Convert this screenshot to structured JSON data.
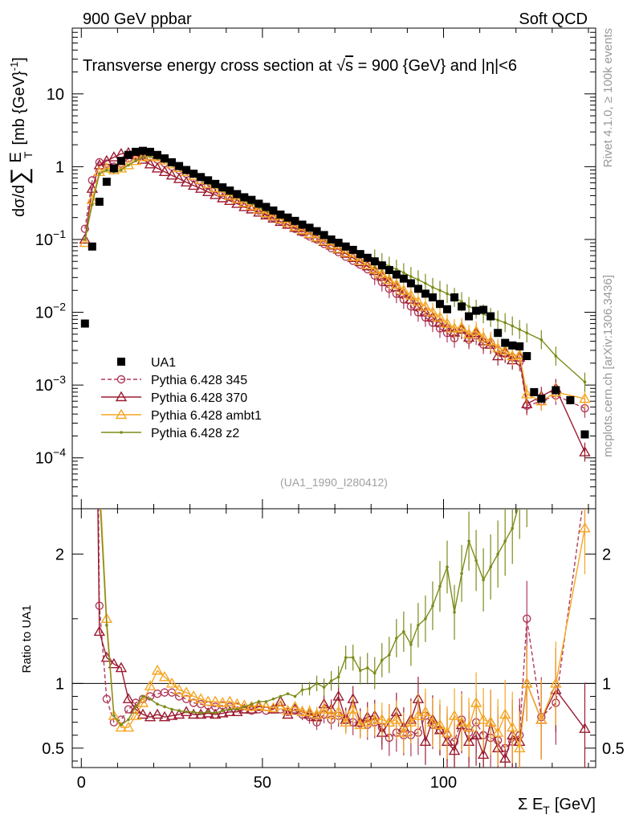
{
  "header": {
    "left": "900 GeV ppbar",
    "right": "Soft QCD",
    "rivet": "Rivet 4.1.0, ≥ 100k events",
    "mcplots": "mcplots.cern.ch [arXiv:1306.3436]",
    "analysis_id": "(UA1_1990_I280412)"
  },
  "chart_data": {
    "type": "line",
    "title": "Transverse energy cross section at √s = 900 {GeV} and |η|<6",
    "title_main": "Transverse energy cross section at ",
    "title_sqrt": "s",
    "title_rest": " = 900 {GeV} and |η|<6",
    "ylabel": "dσ/d∑ E_T [mb {GeV}^-1]",
    "ylabel_a": "dσ/d",
    "ylabel_b": "∑",
    "ylabel_c": "E",
    "ylabel_d": "T",
    "ylabel_e": "[mb {GeV}",
    "ylabel_f": "-1",
    "ylabel_g": "]",
    "xlabel": "Σ E_T [GeV]",
    "xlabel_a": "Σ E",
    "xlabel_b": "T",
    "xlabel_c": "[GeV]",
    "ratio_label": "Ratio to UA1",
    "xlim": [
      -2.5,
      142
    ],
    "ylim": [
      2e-05,
      80
    ],
    "yscale": "log",
    "ratio_ylim": [
      0.35,
      2.35
    ],
    "x_ticks": [
      "0",
      "50",
      "100"
    ],
    "y_ticks": [
      {
        "value": 10,
        "label": "10"
      },
      {
        "value": 1,
        "label": "1"
      },
      {
        "value": 0.1,
        "base": "10",
        "exp": "−1"
      },
      {
        "value": 0.01,
        "base": "10",
        "exp": "−2"
      },
      {
        "value": 0.001,
        "base": "10",
        "exp": "−3"
      },
      {
        "value": 0.0001,
        "base": "10",
        "exp": "−4"
      }
    ],
    "ratio_ticks": [
      "0.5",
      "1",
      "2"
    ],
    "series": [
      {
        "name": "UA1",
        "color": "#000000",
        "marker": "square",
        "x": [
          1,
          3,
          5,
          7,
          9,
          11,
          13,
          15,
          17,
          19,
          21,
          23,
          25,
          27,
          29,
          31,
          33,
          35,
          37,
          39,
          41,
          43,
          45,
          47,
          49,
          51,
          53,
          55,
          57,
          59,
          61,
          63,
          65,
          67,
          69,
          71,
          73,
          75,
          77,
          79,
          81,
          83,
          85,
          87,
          89,
          91,
          93,
          95,
          97,
          99,
          101,
          103,
          105,
          107,
          109,
          111,
          113,
          115,
          117,
          119,
          121,
          123,
          125,
          127,
          131,
          135,
          139
        ],
        "y": [
          0.007,
          0.08,
          0.33,
          0.62,
          0.95,
          1.2,
          1.45,
          1.6,
          1.65,
          1.6,
          1.45,
          1.3,
          1.15,
          1.02,
          0.9,
          0.8,
          0.72,
          0.65,
          0.58,
          0.52,
          0.47,
          0.42,
          0.38,
          0.35,
          0.31,
          0.28,
          0.25,
          0.22,
          0.2,
          0.18,
          0.16,
          0.145,
          0.13,
          0.115,
          0.1,
          0.09,
          0.08,
          0.072,
          0.063,
          0.056,
          0.05,
          0.044,
          0.038,
          0.033,
          0.029,
          0.025,
          0.021,
          0.018,
          0.016,
          0.013,
          0.011,
          0.016,
          0.012,
          0.0088,
          0.0105,
          0.0108,
          0.0088,
          0.0052,
          0.0038,
          0.0035,
          0.0034,
          0.0025,
          0.0008,
          0.00065,
          0.00085,
          0.00062,
          0.00021
        ]
      },
      {
        "name": "Pythia 6.428 345",
        "color": "#b03a5a",
        "marker": "circle",
        "dashed": true,
        "x": [
          1,
          3,
          5,
          7,
          9,
          11,
          13,
          15,
          17,
          19,
          21,
          23,
          25,
          27,
          29,
          31,
          33,
          35,
          37,
          39,
          41,
          43,
          45,
          47,
          49,
          51,
          53,
          55,
          57,
          59,
          61,
          63,
          65,
          67,
          69,
          71,
          73,
          75,
          77,
          79,
          81,
          83,
          85,
          87,
          89,
          91,
          93,
          95,
          97,
          99,
          101,
          103,
          105,
          107,
          109,
          111,
          113,
          115,
          117,
          119,
          121,
          123,
          127,
          131,
          139
        ],
        "y": [
          0.14,
          0.65,
          1.15,
          1.1,
          1.0,
          1.1,
          1.3,
          1.4,
          1.45,
          1.38,
          1.25,
          1.12,
          1.0,
          0.9,
          0.8,
          0.7,
          0.62,
          0.55,
          0.49,
          0.44,
          0.39,
          0.35,
          0.31,
          0.28,
          0.25,
          0.22,
          0.2,
          0.18,
          0.16,
          0.14,
          0.125,
          0.11,
          0.1,
          0.087,
          0.076,
          0.067,
          0.058,
          0.051,
          0.045,
          0.039,
          0.032,
          0.026,
          0.021,
          0.018,
          0.015,
          0.012,
          0.01,
          0.0085,
          0.0072,
          0.006,
          0.0052,
          0.0044,
          0.0058,
          0.0042,
          0.0048,
          0.0036,
          0.0038,
          0.003,
          0.0027,
          0.0024,
          0.0021,
          0.00052,
          0.0006,
          0.00072,
          0.00048
        ],
        "ratio": [
          20,
          8,
          1.6,
          0.88,
          0.7,
          0.72,
          0.8,
          0.85,
          0.88,
          0.9,
          0.92,
          0.93,
          0.93,
          0.9,
          0.88,
          0.85,
          0.84,
          0.83,
          0.82,
          0.83,
          0.82,
          0.82,
          0.8,
          0.79,
          0.8,
          0.79,
          0.8,
          0.8,
          0.78,
          0.79,
          0.76,
          0.74,
          0.7,
          0.76,
          0.72,
          0.75,
          0.72,
          0.7,
          0.69,
          0.68,
          0.7,
          0.66,
          0.58,
          0.62,
          0.6,
          0.6,
          0.62,
          0.75,
          0.68,
          0.64,
          0.6,
          0.55,
          0.72,
          0.62,
          0.7,
          0.6,
          0.58,
          0.56,
          0.5,
          0.55,
          0.6,
          1.5,
          0.74,
          0.85,
          2.5
        ]
      },
      {
        "name": "Pythia 6.428 370",
        "color": "#9b1b30",
        "marker": "triangle",
        "x": [
          1,
          3,
          5,
          7,
          9,
          11,
          13,
          15,
          17,
          19,
          21,
          23,
          25,
          27,
          29,
          31,
          33,
          35,
          37,
          39,
          41,
          43,
          45,
          47,
          49,
          51,
          53,
          55,
          57,
          59,
          61,
          63,
          65,
          67,
          69,
          71,
          73,
          75,
          77,
          79,
          81,
          83,
          85,
          87,
          89,
          91,
          93,
          95,
          97,
          99,
          101,
          103,
          105,
          107,
          109,
          111,
          113,
          115,
          117,
          119,
          121,
          123,
          127,
          131,
          139
        ],
        "y": [
          0.1,
          0.5,
          1.05,
          1.2,
          1.35,
          1.5,
          1.55,
          1.45,
          1.25,
          1.08,
          0.95,
          0.85,
          0.76,
          0.68,
          0.61,
          0.55,
          0.5,
          0.45,
          0.41,
          0.37,
          0.34,
          0.31,
          0.28,
          0.26,
          0.235,
          0.215,
          0.195,
          0.175,
          0.16,
          0.145,
          0.13,
          0.118,
          0.105,
          0.093,
          0.083,
          0.073,
          0.064,
          0.056,
          0.049,
          0.043,
          0.037,
          0.031,
          0.026,
          0.022,
          0.018,
          0.015,
          0.012,
          0.01,
          0.0085,
          0.0072,
          0.0062,
          0.0053,
          0.0058,
          0.0045,
          0.0052,
          0.004,
          0.0036,
          0.0025,
          0.0028,
          0.0022,
          0.0024,
          0.00055,
          0.0007,
          0.0009,
          0.00012
        ],
        "ratio": [
          14,
          6,
          1.4,
          1.2,
          1.15,
          1.12,
          0.88,
          0.8,
          0.76,
          0.74,
          0.76,
          0.74,
          0.75,
          0.76,
          0.78,
          0.76,
          0.76,
          0.77,
          0.76,
          0.77,
          0.78,
          0.78,
          0.8,
          0.8,
          0.82,
          0.82,
          0.8,
          0.86,
          0.76,
          0.8,
          0.78,
          0.76,
          0.74,
          0.84,
          0.8,
          0.9,
          0.72,
          0.88,
          0.7,
          0.74,
          0.75,
          0.62,
          0.7,
          0.78,
          0.66,
          0.72,
          0.88,
          0.55,
          0.72,
          0.64,
          0.55,
          0.48,
          0.68,
          0.55,
          0.6,
          0.45,
          0.7,
          0.5,
          0.42,
          0.6,
          0.55,
          1.0,
          0.72,
          0.95,
          0.65
        ]
      },
      {
        "name": "Pythia 6.428 ambt1",
        "color": "#f5a623",
        "marker": "triangle",
        "x": [
          1,
          3,
          5,
          7,
          9,
          11,
          13,
          15,
          17,
          19,
          21,
          23,
          25,
          27,
          29,
          31,
          33,
          35,
          37,
          39,
          41,
          43,
          45,
          47,
          49,
          51,
          53,
          55,
          57,
          59,
          61,
          63,
          65,
          67,
          69,
          71,
          73,
          75,
          77,
          79,
          81,
          83,
          85,
          87,
          89,
          91,
          93,
          95,
          97,
          99,
          101,
          103,
          105,
          107,
          109,
          111,
          113,
          115,
          117,
          119,
          121,
          123,
          127,
          131,
          139
        ],
        "y": [
          0.09,
          0.35,
          0.85,
          0.95,
          0.9,
          0.95,
          1.05,
          1.2,
          1.35,
          1.4,
          1.35,
          1.22,
          1.08,
          0.96,
          0.85,
          0.75,
          0.66,
          0.58,
          0.51,
          0.45,
          0.4,
          0.36,
          0.32,
          0.29,
          0.26,
          0.23,
          0.21,
          0.19,
          0.17,
          0.15,
          0.135,
          0.12,
          0.107,
          0.095,
          0.085,
          0.075,
          0.066,
          0.058,
          0.051,
          0.045,
          0.039,
          0.034,
          0.028,
          0.024,
          0.02,
          0.017,
          0.014,
          0.012,
          0.01,
          0.0085,
          0.007,
          0.006,
          0.0062,
          0.005,
          0.0055,
          0.0045,
          0.004,
          0.0032,
          0.003,
          0.0025,
          0.0026,
          0.00075,
          0.0006,
          0.0008,
          0.00065
        ],
        "ratio": [
          13,
          4.5,
          2.6,
          1.5,
          0.75,
          0.66,
          0.66,
          0.75,
          0.85,
          0.98,
          1.1,
          1.05,
          1.0,
          0.95,
          0.93,
          0.9,
          0.88,
          0.86,
          0.86,
          0.85,
          0.86,
          0.84,
          0.83,
          0.82,
          0.83,
          0.82,
          0.81,
          0.83,
          0.79,
          0.82,
          0.78,
          0.78,
          0.76,
          0.8,
          0.76,
          0.78,
          0.7,
          0.8,
          0.68,
          0.7,
          0.72,
          0.72,
          0.7,
          0.72,
          0.62,
          0.7,
          0.75,
          0.78,
          0.7,
          0.68,
          0.62,
          0.75,
          0.7,
          0.66,
          0.85,
          0.72,
          0.7,
          0.62,
          0.76,
          0.66,
          0.5,
          1.0,
          0.72,
          1.0,
          2.2
        ]
      },
      {
        "name": "Pythia 6.428 z2",
        "color": "#7d8b1a",
        "marker": "dot",
        "x": [
          1,
          3,
          5,
          7,
          9,
          11,
          13,
          15,
          17,
          19,
          21,
          23,
          25,
          27,
          29,
          31,
          33,
          35,
          37,
          39,
          41,
          43,
          45,
          47,
          49,
          51,
          53,
          55,
          57,
          59,
          61,
          63,
          65,
          67,
          69,
          71,
          73,
          75,
          77,
          79,
          81,
          83,
          85,
          87,
          89,
          91,
          93,
          95,
          97,
          99,
          101,
          103,
          105,
          107,
          109,
          111,
          113,
          115,
          117,
          119,
          121,
          123,
          127,
          131,
          139
        ],
        "y": [
          0.1,
          0.3,
          0.8,
          0.9,
          0.85,
          0.9,
          1.05,
          1.2,
          1.35,
          1.38,
          1.3,
          1.18,
          1.05,
          0.93,
          0.83,
          0.74,
          0.66,
          0.59,
          0.53,
          0.47,
          0.42,
          0.38,
          0.34,
          0.31,
          0.28,
          0.25,
          0.23,
          0.21,
          0.19,
          0.17,
          0.155,
          0.14,
          0.125,
          0.112,
          0.1,
          0.09,
          0.081,
          0.073,
          0.066,
          0.06,
          0.054,
          0.048,
          0.043,
          0.039,
          0.035,
          0.031,
          0.028,
          0.025,
          0.022,
          0.02,
          0.018,
          0.016,
          0.014,
          0.012,
          0.011,
          0.0095,
          0.0085,
          0.0078,
          0.0072,
          0.0065,
          0.0058,
          0.0052,
          0.0042,
          0.0025,
          0.0011
        ],
        "ratio": [
          15,
          4,
          2.5,
          1.45,
          0.75,
          0.68,
          0.72,
          0.82,
          0.9,
          0.88,
          0.84,
          0.82,
          0.8,
          0.79,
          0.78,
          0.78,
          0.77,
          0.78,
          0.77,
          0.79,
          0.8,
          0.8,
          0.82,
          0.84,
          0.86,
          0.86,
          0.88,
          0.9,
          0.92,
          0.9,
          0.95,
          0.96,
          1.0,
          0.97,
          1.02,
          1.05,
          1.2,
          1.2,
          1.1,
          1.12,
          1.08,
          1.18,
          1.22,
          1.35,
          1.4,
          1.3,
          1.45,
          1.5,
          1.6,
          1.75,
          1.9,
          1.55,
          1.85,
          2.1,
          1.95,
          1.8,
          1.9,
          2.0,
          2.1,
          2.2,
          2.4,
          2.5,
          2.7,
          3.0,
          3.5
        ]
      }
    ]
  }
}
